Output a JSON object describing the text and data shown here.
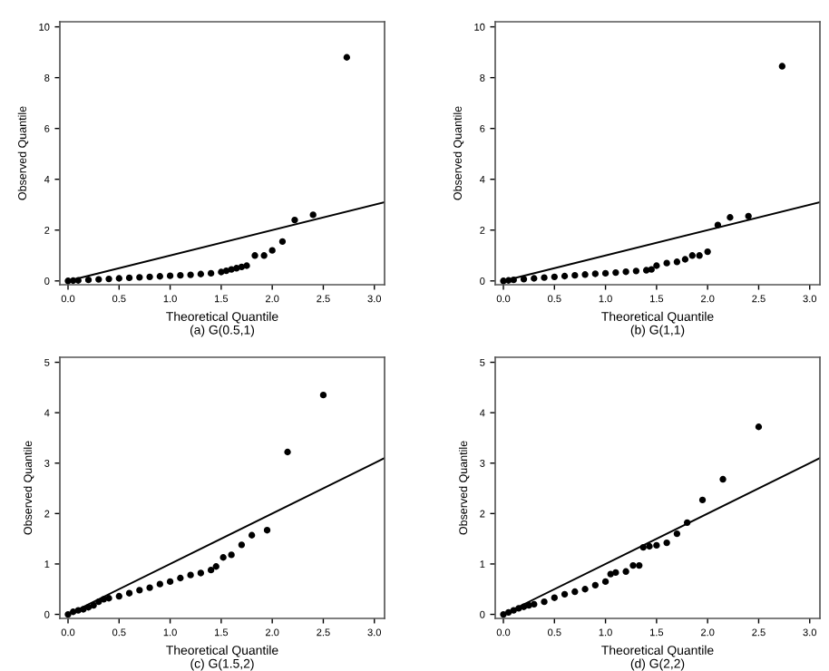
{
  "chart_data": [
    {
      "type": "scatter",
      "xlabel": "Theoretical Quantile",
      "ylabel": "Observed Quantile",
      "annotations": [
        "(a) G(0.5,1)"
      ],
      "grid": false,
      "xlim": [
        -0.08,
        3.1
      ],
      "ylim": [
        -0.15,
        10.2
      ],
      "xticks": [
        {
          "value": 0,
          "label": "0.0"
        },
        {
          "value": 0.5,
          "label": "0.5"
        },
        {
          "value": 1,
          "label": "1.0"
        },
        {
          "value": 1.5,
          "label": "1.5"
        },
        {
          "value": 2,
          "label": "2.0"
        },
        {
          "value": 2.5,
          "label": "2.5"
        },
        {
          "value": 3,
          "label": "3.0"
        }
      ],
      "yticks": [
        0,
        2,
        4,
        6,
        8,
        10
      ],
      "series": [
        {
          "type": "scatter",
          "marker": "circle",
          "color": "#000000",
          "x": [
            0,
            0.05,
            0.1,
            0.2,
            0.3,
            0.4,
            0.5,
            0.6,
            0.7,
            0.8,
            0.9,
            1.0,
            1.1,
            1.2,
            1.3,
            1.4,
            1.5,
            1.55,
            1.6,
            1.65,
            1.7,
            1.75,
            1.83,
            1.92,
            2.0,
            2.1,
            2.22,
            2.4,
            2.73
          ],
          "values": [
            0,
            0.01,
            0.02,
            0.04,
            0.06,
            0.08,
            0.1,
            0.12,
            0.14,
            0.16,
            0.18,
            0.2,
            0.22,
            0.24,
            0.27,
            0.3,
            0.35,
            0.4,
            0.45,
            0.5,
            0.55,
            0.6,
            1.0,
            1.0,
            1.2,
            1.55,
            2.4,
            2.6,
            8.8
          ]
        },
        {
          "type": "line",
          "marker": "none",
          "color": "#000000",
          "x": [
            0,
            3.1
          ],
          "values": [
            0,
            3.1
          ]
        }
      ]
    },
    {
      "type": "scatter",
      "xlabel": "Theoretical Quantile",
      "ylabel": "Observed Quantile",
      "annotations": [
        "(b) G(1,1)"
      ],
      "grid": false,
      "xlim": [
        -0.08,
        3.1
      ],
      "ylim": [
        -0.15,
        10.2
      ],
      "xticks": [
        {
          "value": 0,
          "label": "0.0"
        },
        {
          "value": 0.5,
          "label": "0.5"
        },
        {
          "value": 1,
          "label": "1.0"
        },
        {
          "value": 1.5,
          "label": "1.5"
        },
        {
          "value": 2,
          "label": "2.0"
        },
        {
          "value": 2.5,
          "label": "2.5"
        },
        {
          "value": 3,
          "label": "3.0"
        }
      ],
      "yticks": [
        0,
        2,
        4,
        6,
        8,
        10
      ],
      "series": [
        {
          "type": "scatter",
          "marker": "circle",
          "color": "#000000",
          "x": [
            0,
            0.05,
            0.1,
            0.2,
            0.3,
            0.4,
            0.5,
            0.6,
            0.7,
            0.8,
            0.9,
            1.0,
            1.1,
            1.2,
            1.3,
            1.4,
            1.45,
            1.5,
            1.6,
            1.7,
            1.78,
            1.85,
            1.92,
            2.0,
            2.1,
            2.22,
            2.4,
            2.73
          ],
          "values": [
            0,
            0.02,
            0.04,
            0.07,
            0.1,
            0.13,
            0.16,
            0.19,
            0.22,
            0.25,
            0.28,
            0.3,
            0.33,
            0.36,
            0.39,
            0.42,
            0.45,
            0.6,
            0.7,
            0.75,
            0.85,
            1.0,
            1.0,
            1.15,
            2.2,
            2.5,
            2.55,
            8.45
          ]
        },
        {
          "type": "line",
          "marker": "none",
          "color": "#000000",
          "x": [
            0,
            3.1
          ],
          "values": [
            0,
            3.1
          ]
        }
      ]
    },
    {
      "type": "scatter",
      "xlabel": "Theoretical Quantile",
      "ylabel": "Observed Quantile",
      "annotations": [
        "(c) G(1.5,2)"
      ],
      "grid": false,
      "xlim": [
        -0.08,
        3.1
      ],
      "ylim": [
        -0.08,
        5.1
      ],
      "xticks": [
        {
          "value": 0,
          "label": "0.0"
        },
        {
          "value": 0.5,
          "label": "0.5"
        },
        {
          "value": 1,
          "label": "1.0"
        },
        {
          "value": 1.5,
          "label": "1.5"
        },
        {
          "value": 2,
          "label": "2.0"
        },
        {
          "value": 2.5,
          "label": "2.5"
        },
        {
          "value": 3,
          "label": "3.0"
        }
      ],
      "yticks": [
        0,
        1,
        2,
        3,
        4,
        5
      ],
      "series": [
        {
          "type": "scatter",
          "marker": "circle",
          "color": "#000000",
          "x": [
            0,
            0.05,
            0.1,
            0.15,
            0.2,
            0.25,
            0.3,
            0.35,
            0.4,
            0.5,
            0.6,
            0.7,
            0.8,
            0.9,
            1.0,
            1.1,
            1.2,
            1.3,
            1.4,
            1.45,
            1.52,
            1.6,
            1.7,
            1.8,
            1.95,
            2.15,
            2.5
          ],
          "values": [
            0,
            0.05,
            0.08,
            0.1,
            0.14,
            0.18,
            0.25,
            0.3,
            0.32,
            0.36,
            0.42,
            0.48,
            0.53,
            0.6,
            0.65,
            0.72,
            0.78,
            0.82,
            0.88,
            0.95,
            1.13,
            1.18,
            1.38,
            1.57,
            1.67,
            3.22,
            4.35
          ]
        },
        {
          "type": "line",
          "marker": "none",
          "color": "#000000",
          "x": [
            0,
            3.1
          ],
          "values": [
            0,
            3.1
          ]
        }
      ]
    },
    {
      "type": "scatter",
      "xlabel": "Theoretical Quantile",
      "ylabel": "Observed Quantile",
      "annotations": [
        "(d) G(2,2)"
      ],
      "grid": false,
      "xlim": [
        -0.08,
        3.1
      ],
      "ylim": [
        -0.08,
        5.1
      ],
      "xticks": [
        {
          "value": 0,
          "label": "0.0"
        },
        {
          "value": 0.5,
          "label": "0.5"
        },
        {
          "value": 1,
          "label": "1.0"
        },
        {
          "value": 1.5,
          "label": "1.5"
        },
        {
          "value": 2,
          "label": "2.0"
        },
        {
          "value": 2.5,
          "label": "2.5"
        },
        {
          "value": 3,
          "label": "3.0"
        }
      ],
      "yticks": [
        0,
        1,
        2,
        3,
        4,
        5
      ],
      "series": [
        {
          "type": "scatter",
          "marker": "circle",
          "color": "#000000",
          "x": [
            0,
            0.05,
            0.1,
            0.15,
            0.2,
            0.25,
            0.3,
            0.4,
            0.5,
            0.6,
            0.7,
            0.8,
            0.9,
            1.0,
            1.05,
            1.1,
            1.2,
            1.27,
            1.33,
            1.37,
            1.43,
            1.5,
            1.6,
            1.7,
            1.8,
            1.95,
            2.15,
            2.5
          ],
          "values": [
            0,
            0.04,
            0.08,
            0.12,
            0.15,
            0.18,
            0.2,
            0.25,
            0.33,
            0.4,
            0.45,
            0.5,
            0.58,
            0.65,
            0.8,
            0.83,
            0.85,
            0.97,
            0.97,
            1.33,
            1.35,
            1.37,
            1.42,
            1.6,
            1.82,
            2.27,
            2.68,
            3.72
          ]
        },
        {
          "type": "line",
          "marker": "none",
          "color": "#000000",
          "x": [
            0,
            3.1
          ],
          "values": [
            0,
            3.1
          ]
        }
      ]
    }
  ]
}
